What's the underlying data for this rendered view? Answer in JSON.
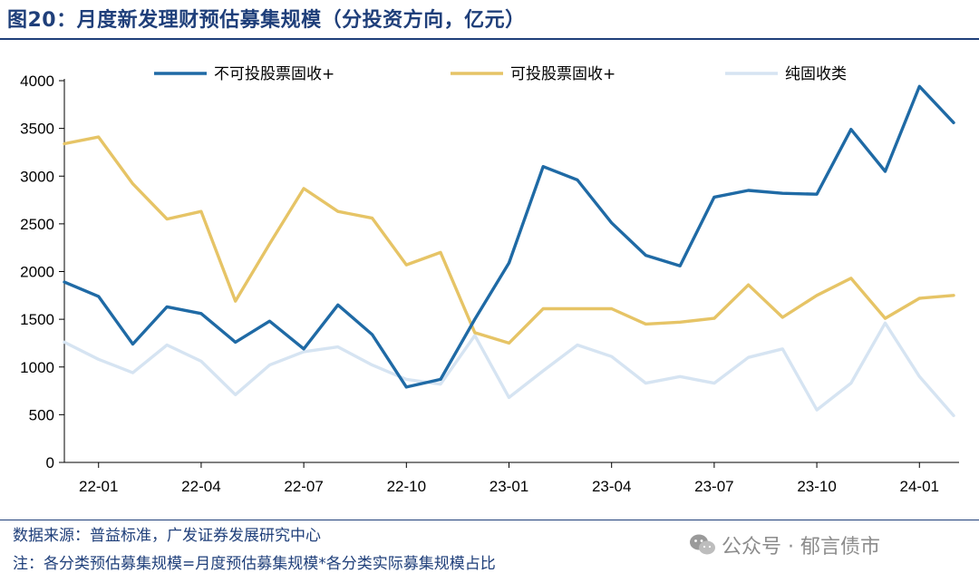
{
  "header": {
    "title": "图20：月度新发理财预估募集规模（分投资方向，亿元）"
  },
  "footer": {
    "source": "数据来源：普益标准，广发证券发展研究中心",
    "note": "注：各分类预估募集规模=月度预估募集规模*各分类实际募集规模占比"
  },
  "watermark": {
    "text": "公众号 · 郁言债市",
    "icon": "wechat-icon"
  },
  "chart_data": {
    "type": "line",
    "title": "",
    "xlabel": "",
    "ylabel": "",
    "ylim": [
      0,
      4000
    ],
    "yticks": [
      0,
      500,
      1000,
      1500,
      2000,
      2500,
      3000,
      3500,
      4000
    ],
    "x": [
      "21-12",
      "22-01",
      "22-02",
      "22-03",
      "22-04",
      "22-05",
      "22-06",
      "22-07",
      "22-08",
      "22-09",
      "22-10",
      "22-11",
      "22-12",
      "23-01",
      "23-02",
      "23-03",
      "23-04",
      "23-05",
      "23-06",
      "23-07",
      "23-08",
      "23-09",
      "23-10",
      "23-11",
      "23-12",
      "24-01",
      "24-02"
    ],
    "xtick_labels": [
      "22-01",
      "22-04",
      "22-07",
      "22-10",
      "23-01",
      "23-04",
      "23-07",
      "23-10",
      "24-01"
    ],
    "xtick_indices": [
      1,
      4,
      7,
      10,
      13,
      16,
      19,
      22,
      25
    ],
    "legend": "top",
    "grid": false,
    "series": [
      {
        "name": "不可投股票固收+",
        "color": "#1f6aa5",
        "values": [
          1890,
          1740,
          1240,
          1630,
          1560,
          1260,
          1480,
          1190,
          1650,
          1340,
          790,
          870,
          1500,
          2090,
          3100,
          2960,
          2510,
          2170,
          2060,
          2780,
          2850,
          2820,
          2810,
          3490,
          3050,
          3940,
          3560
        ]
      },
      {
        "name": "可投股票固收+",
        "color": "#e6c466",
        "values": [
          3340,
          3410,
          2920,
          2550,
          2630,
          1690,
          2290,
          2870,
          2630,
          2560,
          2070,
          2200,
          1360,
          1250,
          1610,
          1610,
          1610,
          1450,
          1470,
          1510,
          1860,
          1520,
          1750,
          1930,
          1510,
          1720,
          1750
        ]
      },
      {
        "name": "纯固收类",
        "color": "#d6e4f2",
        "values": [
          1260,
          1080,
          940,
          1230,
          1060,
          710,
          1020,
          1160,
          1210,
          1020,
          870,
          820,
          1330,
          680,
          960,
          1230,
          1110,
          830,
          900,
          830,
          1100,
          1190,
          550,
          830,
          1460,
          900,
          490
        ]
      }
    ]
  }
}
